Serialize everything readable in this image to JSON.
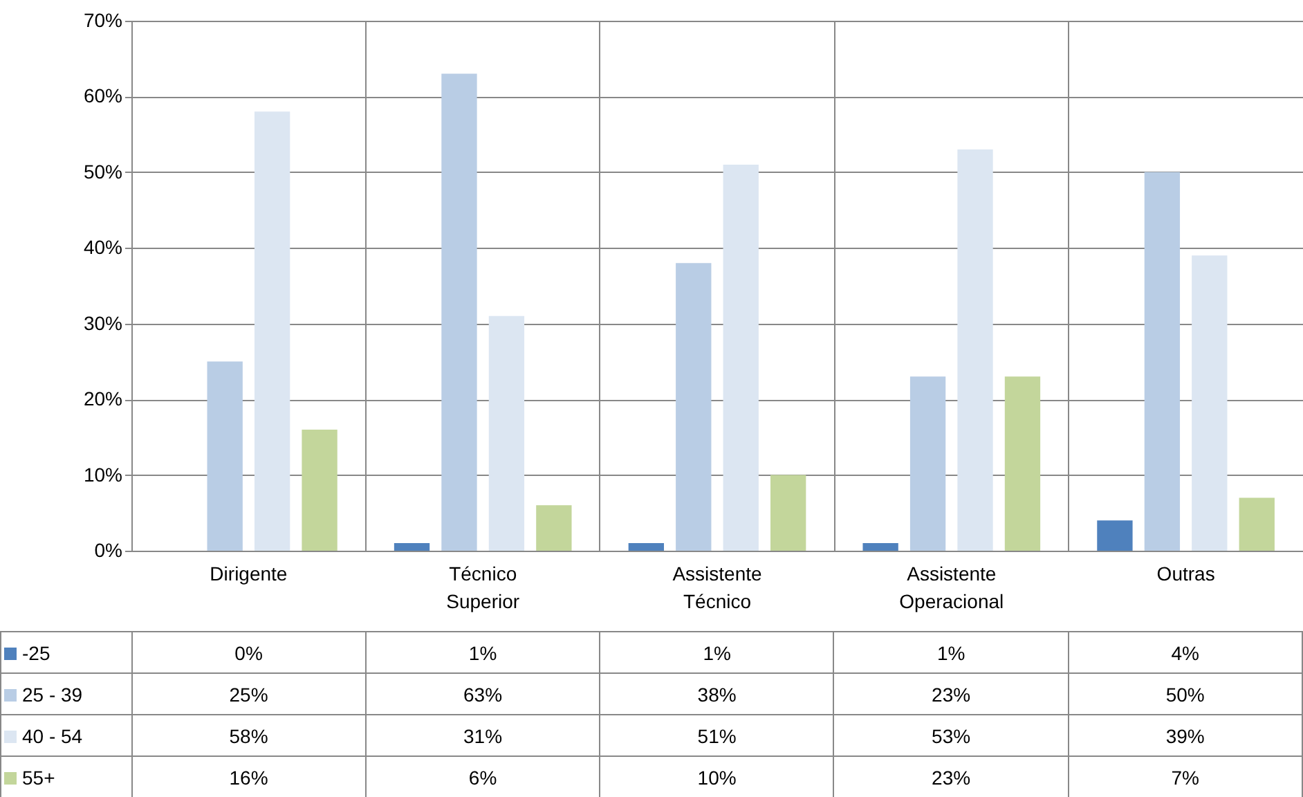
{
  "chart_data": {
    "type": "bar",
    "categories": [
      "Dirigente",
      "Técnico Superior",
      "Assistente Técnico",
      "Assistente Operacional",
      "Outras"
    ],
    "series": [
      {
        "name": "-25",
        "color": "#4f81bd",
        "values": [
          0,
          1,
          1,
          1,
          4
        ],
        "value_labels": [
          "0%",
          "1%",
          "1%",
          "1%",
          "4%"
        ]
      },
      {
        "name": "25 - 39",
        "color": "#b9cde5",
        "values": [
          25,
          63,
          38,
          23,
          50
        ],
        "value_labels": [
          "25%",
          "63%",
          "38%",
          "23%",
          "50%"
        ]
      },
      {
        "name": "40 - 54",
        "color": "#dce6f2",
        "values": [
          58,
          31,
          51,
          53,
          39
        ],
        "value_labels": [
          "58%",
          "31%",
          "51%",
          "53%",
          "39%"
        ]
      },
      {
        "name": "55+",
        "color": "#c3d69b",
        "values": [
          16,
          6,
          10,
          23,
          7
        ],
        "value_labels": [
          "16%",
          "6%",
          "10%",
          "23%",
          "7%"
        ]
      }
    ],
    "ylim": [
      0,
      70
    ],
    "yticks": [
      {
        "value": 0,
        "label": "0%"
      },
      {
        "value": 10,
        "label": "10%"
      },
      {
        "value": 20,
        "label": "20%"
      },
      {
        "value": 30,
        "label": "30%"
      },
      {
        "value": 40,
        "label": "40%"
      },
      {
        "value": 50,
        "label": "50%"
      },
      {
        "value": 60,
        "label": "60%"
      },
      {
        "value": 70,
        "label": "70%"
      }
    ],
    "grid": true,
    "legend": "bottom"
  }
}
